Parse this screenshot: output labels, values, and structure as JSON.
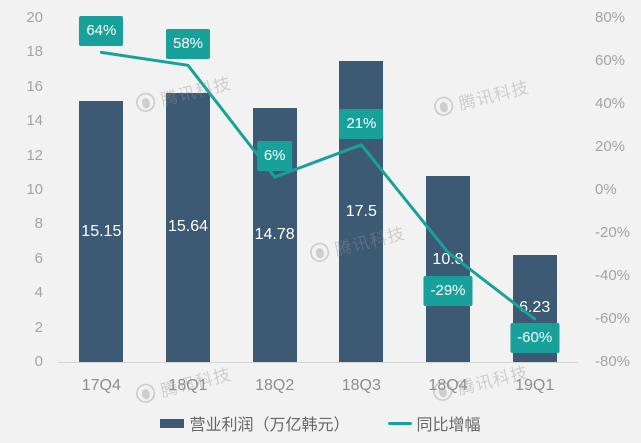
{
  "watermark": {
    "text": "腾讯科技"
  },
  "legend": {
    "items": [
      {
        "label": "营业利润（万亿韩元）",
        "marker": "bar",
        "color": "#3c5a73"
      },
      {
        "label": "同比增幅",
        "marker": "line",
        "color": "#18a19b"
      }
    ]
  },
  "chart_data": {
    "type": "bar",
    "title": "",
    "categories": [
      "17Q4",
      "18Q1",
      "18Q2",
      "18Q3",
      "18Q4",
      "19Q1"
    ],
    "series": [
      {
        "name": "营业利润（万亿韩元）",
        "type": "bar",
        "axis": "left",
        "color": "#3c5a73",
        "values": [
          15.15,
          15.64,
          14.78,
          17.5,
          10.8,
          6.23
        ],
        "data_labels": [
          "15.15",
          "15.64",
          "14.78",
          "17.5",
          "10.8",
          "6.23"
        ],
        "label_color": "#ffffff"
      },
      {
        "name": "同比增幅",
        "type": "line",
        "axis": "right",
        "color": "#18a19b",
        "values": [
          64,
          58,
          6,
          21,
          -29,
          -60
        ],
        "data_labels": [
          "64%",
          "58%",
          "6%",
          "21%",
          "-29%",
          "-60%"
        ],
        "label_bg": "#18a19b",
        "label_color": "#ffffff"
      }
    ],
    "left_axis": {
      "min": 0,
      "max": 20,
      "tick_labels": [
        "20",
        "18",
        "16",
        "14",
        "12",
        "10",
        "8",
        "6",
        "4",
        "2",
        "0"
      ]
    },
    "right_axis": {
      "min": -80,
      "max": 80,
      "tick_labels": [
        "80%",
        "60%",
        "40%",
        "20%",
        "0%",
        "-20%",
        "-40%",
        "-60%",
        "-80%"
      ]
    },
    "grid": false,
    "legend_position": "bottom"
  },
  "colors": {
    "background": "#f2f2f2",
    "axis_line": "#d6d6d6",
    "tick_text": "#a4a4a4",
    "x_label_text": "#8e8e8e",
    "legend_text": "#666666"
  }
}
